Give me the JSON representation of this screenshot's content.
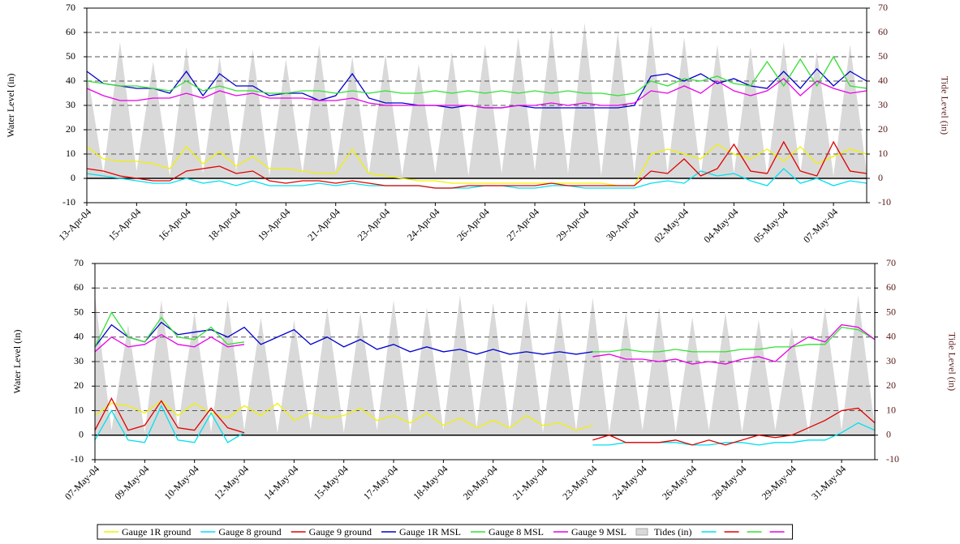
{
  "chart_data": [
    {
      "type": "line",
      "y_label": "Water Level (in)",
      "y2_label": "Tide Level (in)",
      "ylim": [
        -10,
        70
      ],
      "yticks": [
        -10,
        0,
        10,
        20,
        30,
        40,
        50,
        60,
        70
      ],
      "y2lim": [
        -10,
        70
      ],
      "y2ticks": [
        -10,
        0,
        10,
        20,
        30,
        40,
        50,
        60,
        70
      ],
      "grid": true,
      "legend": false,
      "categories": [
        "13-Apr-04",
        null,
        null,
        "15-Apr-04",
        null,
        null,
        "16-Apr-04",
        null,
        null,
        "18-Apr-04",
        null,
        null,
        "19-Apr-04",
        null,
        null,
        "21-Apr-04",
        null,
        null,
        "23-Apr-04",
        null,
        null,
        "24-Apr-04",
        null,
        null,
        "26-Apr-04",
        null,
        null,
        "27-Apr-04",
        null,
        null,
        "29-Apr-04",
        null,
        null,
        "30-Apr-04",
        null,
        null,
        "02-May-04",
        null,
        null,
        "04-May-04",
        null,
        null,
        "05-May-04",
        null,
        null,
        "07-May-04",
        null,
        null
      ],
      "series": [
        {
          "name": "Tides (in)",
          "color": "#d9d9d9",
          "kind": "area",
          "axis": "y2",
          "values": [
            45,
            2,
            56,
            3,
            48,
            1,
            54,
            2,
            50,
            3,
            53,
            1,
            49,
            2,
            55,
            3,
            50,
            2,
            51,
            1,
            47,
            2,
            52,
            1,
            55,
            2,
            58,
            3,
            62,
            2,
            64,
            1,
            60,
            2,
            63,
            2,
            58,
            1,
            55,
            2,
            54,
            1,
            56,
            2,
            52,
            1,
            55,
            2
          ]
        },
        {
          "name": "Gauge 1R ground",
          "color": "#f2f200",
          "values": [
            13,
            8,
            7,
            7,
            6,
            4,
            13,
            6,
            11,
            5,
            9,
            4,
            4,
            3,
            2,
            2,
            12,
            2,
            1,
            0,
            -1,
            -1,
            -2,
            -2,
            -2,
            -2,
            -2,
            -2,
            -2,
            -2,
            -2,
            -2,
            -3,
            -3,
            10,
            12,
            10,
            8,
            14,
            10,
            8,
            12,
            7,
            13,
            6,
            9,
            12,
            10
          ]
        },
        {
          "name": "Gauge 8 ground",
          "color": "#00e0f0",
          "values": [
            2,
            1,
            0,
            -1,
            -2,
            -2,
            0,
            -2,
            -1,
            -3,
            -1,
            -3,
            -3,
            -3,
            -2,
            -3,
            -2,
            -3,
            -3,
            -3,
            -3,
            -4,
            -4,
            -4,
            -3,
            -3,
            -4,
            -4,
            -3,
            -3,
            -4,
            -4,
            -4,
            -4,
            -2,
            -1,
            -2,
            3,
            1,
            2,
            -1,
            -3,
            4,
            -2,
            0,
            -3,
            -1,
            -2
          ]
        },
        {
          "name": "Gauge 9 ground",
          "color": "#e00000",
          "values": [
            4,
            3,
            1,
            0,
            -1,
            -1,
            3,
            4,
            5,
            2,
            3,
            -1,
            -2,
            -1,
            -1,
            -2,
            -1,
            -2,
            -3,
            -3,
            -3,
            -4,
            -4,
            -3,
            -3,
            -3,
            -3,
            -3,
            -2,
            -3,
            -3,
            -3,
            -3,
            -3,
            3,
            2,
            8,
            1,
            4,
            14,
            3,
            2,
            15,
            3,
            1,
            15,
            3,
            2
          ]
        },
        {
          "name": "Gauge 1R MSL",
          "color": "#0000cc",
          "values": [
            44,
            39,
            38,
            37,
            37,
            35,
            44,
            34,
            43,
            38,
            38,
            34,
            35,
            35,
            32,
            34,
            43,
            33,
            31,
            31,
            30,
            30,
            29,
            30,
            29,
            29,
            30,
            29,
            29,
            29,
            29,
            29,
            29,
            30,
            42,
            43,
            40,
            43,
            39,
            41,
            38,
            37,
            44,
            37,
            45,
            38,
            44,
            40
          ]
        },
        {
          "name": "Gauge 8 MSL",
          "color": "#33e033",
          "values": [
            40,
            39,
            38,
            38,
            37,
            36,
            40,
            36,
            38,
            36,
            36,
            35,
            35,
            36,
            36,
            35,
            36,
            35,
            36,
            35,
            35,
            36,
            35,
            36,
            35,
            36,
            35,
            36,
            35,
            36,
            35,
            35,
            34,
            35,
            40,
            38,
            41,
            40,
            42,
            39,
            38,
            48,
            38,
            49,
            38,
            50,
            38,
            37
          ]
        },
        {
          "name": "Gauge 9 MSL",
          "color": "#e800e8",
          "values": [
            37,
            34,
            32,
            32,
            33,
            33,
            35,
            33,
            36,
            34,
            35,
            33,
            33,
            33,
            32,
            32,
            33,
            31,
            30,
            30,
            30,
            30,
            30,
            30,
            29,
            29,
            30,
            30,
            31,
            30,
            31,
            30,
            30,
            31,
            36,
            35,
            38,
            35,
            40,
            36,
            34,
            36,
            41,
            34,
            40,
            37,
            35,
            36
          ]
        }
      ]
    },
    {
      "type": "line",
      "y_label": "Water Level (in)",
      "y2_label": "Tide Level (in)",
      "ylim": [
        -10,
        70
      ],
      "yticks": [
        -10,
        0,
        10,
        20,
        30,
        40,
        50,
        60,
        70
      ],
      "y2lim": [
        -10,
        70
      ],
      "y2ticks": [
        -10,
        0,
        10,
        20,
        30,
        40,
        50,
        60,
        70
      ],
      "grid": true,
      "legend": "bottom",
      "categories": [
        "07-May-04",
        null,
        null,
        "09-May-04",
        null,
        null,
        "10-May-04",
        null,
        null,
        "12-May-04",
        null,
        null,
        "14-May-04",
        null,
        null,
        "15-May-04",
        null,
        null,
        "17-May-04",
        null,
        null,
        "18-May-04",
        null,
        null,
        "20-May-04",
        null,
        null,
        "21-May-04",
        null,
        null,
        "23-May-04",
        null,
        null,
        "24-May-04",
        null,
        null,
        "26-May-04",
        null,
        null,
        "28-May-04",
        null,
        null,
        "29-May-04",
        null,
        null,
        "31-May-04",
        null,
        null
      ],
      "series": [
        {
          "name": "Gauge 1R ground",
          "color": "#f2f200",
          "values": [
            8,
            13,
            12,
            9,
            14,
            8,
            13,
            9,
            7,
            12,
            8,
            13,
            6,
            9,
            7,
            8,
            11,
            6,
            8,
            5,
            9,
            4,
            7,
            3,
            6,
            3,
            8,
            4,
            5,
            2,
            4,
            null,
            null,
            null,
            null,
            null,
            null,
            null,
            null,
            null,
            null,
            null,
            null,
            null,
            null,
            null,
            null,
            null
          ]
        },
        {
          "name": "Gauge 8 ground",
          "color": "#00e0f0",
          "values": [
            -2,
            10,
            -2,
            -3,
            12,
            -2,
            -3,
            9,
            -3,
            1,
            null,
            null,
            null,
            null,
            null,
            null,
            null,
            null,
            null,
            null,
            null,
            null,
            null,
            null,
            null,
            null,
            null,
            null,
            null,
            null,
            null,
            null,
            null,
            null,
            null,
            null,
            null,
            null,
            null,
            null,
            null,
            null,
            null,
            null,
            null,
            null,
            null,
            null
          ]
        },
        {
          "name": "Gauge 9 ground",
          "color": "#e00000",
          "values": [
            2,
            15,
            2,
            4,
            14,
            3,
            2,
            11,
            3,
            1,
            null,
            null,
            null,
            null,
            null,
            null,
            null,
            null,
            null,
            null,
            null,
            null,
            null,
            null,
            null,
            null,
            null,
            null,
            null,
            null,
            null,
            null,
            null,
            null,
            null,
            null,
            null,
            null,
            null,
            null,
            null,
            null,
            null,
            null,
            null,
            null,
            null,
            null
          ]
        },
        {
          "name": "Gauge 1R MSL",
          "color": "#0000cc",
          "values": [
            36,
            45,
            40,
            38,
            46,
            41,
            42,
            43,
            40,
            44,
            37,
            40,
            43,
            37,
            40,
            36,
            39,
            35,
            37,
            34,
            36,
            34,
            35,
            33,
            35,
            33,
            34,
            33,
            34,
            33,
            34,
            null,
            null,
            null,
            null,
            null,
            null,
            null,
            null,
            null,
            null,
            null,
            null,
            null,
            null,
            null,
            null,
            null
          ]
        },
        {
          "name": "Gauge 8 MSL",
          "color": "#33e033",
          "values": [
            36,
            50,
            40,
            38,
            48,
            40,
            39,
            44,
            37,
            38,
            null,
            null,
            null,
            null,
            null,
            null,
            null,
            null,
            null,
            null,
            null,
            null,
            null,
            null,
            null,
            null,
            null,
            null,
            null,
            null,
            null,
            null,
            null,
            null,
            null,
            null,
            null,
            null,
            null,
            null,
            null,
            null,
            null,
            null,
            null,
            null,
            null,
            null
          ]
        },
        {
          "name": "Gauge 9 MSL",
          "color": "#e800e8",
          "values": [
            34,
            40,
            36,
            37,
            41,
            37,
            36,
            40,
            36,
            37,
            null,
            null,
            null,
            null,
            null,
            null,
            null,
            null,
            null,
            null,
            null,
            null,
            null,
            null,
            null,
            null,
            null,
            null,
            null,
            null,
            null,
            null,
            null,
            null,
            null,
            null,
            null,
            null,
            null,
            null,
            null,
            null,
            null,
            null,
            null,
            null,
            null,
            null
          ]
        },
        {
          "name": "Tides (in)",
          "color": "#d9d9d9",
          "kind": "area",
          "axis": "y2",
          "values": [
            57,
            2,
            45,
            1,
            55,
            3,
            50,
            1,
            55,
            2,
            48,
            1,
            47,
            2,
            52,
            1,
            50,
            2,
            55,
            1,
            52,
            2,
            57,
            3,
            54,
            2,
            55,
            1,
            52,
            2,
            56,
            1,
            50,
            2,
            52,
            1,
            48,
            2,
            50,
            1,
            47,
            2,
            44,
            1,
            52,
            2,
            57,
            3
          ]
        },
        {
          "color": "#00e0f0",
          "values": [
            null,
            null,
            null,
            null,
            null,
            null,
            null,
            null,
            null,
            null,
            null,
            null,
            null,
            null,
            null,
            null,
            null,
            null,
            null,
            null,
            null,
            null,
            null,
            null,
            null,
            null,
            null,
            null,
            null,
            null,
            -4,
            -4,
            -3,
            -3,
            -3,
            -3,
            -4,
            -4,
            -3,
            -3,
            -4,
            -3,
            -3,
            -2,
            -2,
            1,
            5,
            2
          ]
        },
        {
          "color": "#e00000",
          "values": [
            null,
            null,
            null,
            null,
            null,
            null,
            null,
            null,
            null,
            null,
            null,
            null,
            null,
            null,
            null,
            null,
            null,
            null,
            null,
            null,
            null,
            null,
            null,
            null,
            null,
            null,
            null,
            null,
            null,
            null,
            -2,
            0,
            -3,
            -3,
            -3,
            -2,
            -4,
            -2,
            -4,
            -2,
            0,
            -1,
            0,
            3,
            6,
            10,
            11,
            5
          ]
        },
        {
          "color": "#33e033",
          "values": [
            null,
            null,
            null,
            null,
            null,
            null,
            null,
            null,
            null,
            null,
            null,
            null,
            null,
            null,
            null,
            null,
            null,
            null,
            null,
            null,
            null,
            null,
            null,
            null,
            null,
            null,
            null,
            null,
            null,
            null,
            34,
            34,
            35,
            34,
            34,
            35,
            34,
            34,
            34,
            35,
            35,
            36,
            36,
            37,
            37,
            44,
            43,
            39
          ]
        },
        {
          "color": "#e800e8",
          "values": [
            null,
            null,
            null,
            null,
            null,
            null,
            null,
            null,
            null,
            null,
            null,
            null,
            null,
            null,
            null,
            null,
            null,
            null,
            null,
            null,
            null,
            null,
            null,
            null,
            null,
            null,
            null,
            null,
            null,
            null,
            32,
            33,
            31,
            31,
            30,
            31,
            29,
            30,
            29,
            31,
            32,
            30,
            36,
            40,
            38,
            45,
            44,
            39
          ]
        }
      ]
    }
  ]
}
